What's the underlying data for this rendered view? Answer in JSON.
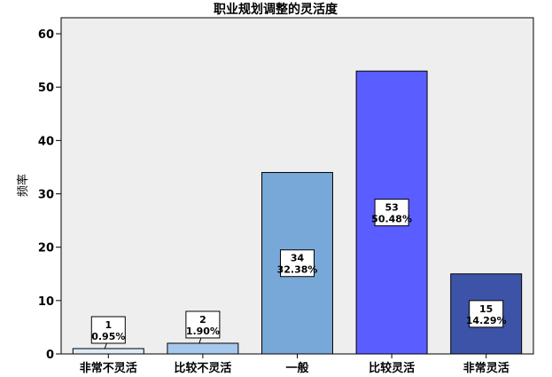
{
  "chart_data": {
    "type": "bar",
    "title": "职业规划调整的灵活度",
    "xlabel": "",
    "ylabel": "频率",
    "ylim": [
      0,
      63
    ],
    "yticks": [
      0,
      10,
      20,
      30,
      40,
      50,
      60
    ],
    "grid": false,
    "categories": [
      "非常不灵活",
      "比较不灵活",
      "一般",
      "比较灵活",
      "非常灵活"
    ],
    "values": [
      1,
      2,
      34,
      53,
      15
    ],
    "percent_labels": [
      "0.95%",
      "1.90%",
      "32.38%",
      "50.48%",
      "14.29%"
    ],
    "bar_colors": [
      "#deebf7",
      "#a6c8ec",
      "#77a8d8",
      "#5a5dff",
      "#3c53a8"
    ],
    "plot_background": "#eeeeee"
  }
}
